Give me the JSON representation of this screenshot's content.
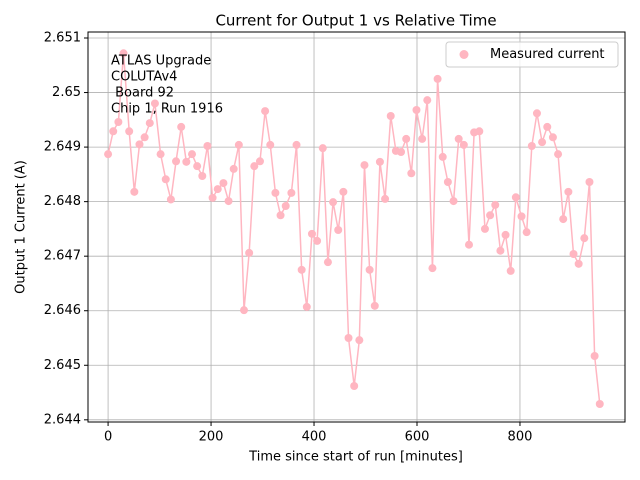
{
  "chart_data": {
    "type": "line",
    "title": "Current for Output 1 vs Relative Time",
    "x_label": "Time since start of run [minutes]",
    "y_label": "Output 1 Current (A)",
    "annotation": [
      "ATLAS Upgrade",
      "COLUTAv4",
      " Board 92",
      "Chip 1, Run 1916"
    ],
    "legend": "upper right",
    "grid": true,
    "xlim": [
      -39,
      1004
    ],
    "ylim": [
      2.64396,
      2.65111
    ],
    "xticks": [
      0,
      200,
      400,
      600,
      800
    ],
    "yticks": [
      2.644,
      2.645,
      2.646,
      2.647,
      2.648,
      2.649,
      2.65,
      2.651
    ],
    "series": [
      {
        "name": "Measured current",
        "color": "#ffb6c1",
        "x": [
          0,
          10,
          20,
          30,
          41,
          51,
          61,
          71,
          81,
          91,
          102,
          112,
          122,
          132,
          142,
          152,
          163,
          173,
          183,
          193,
          203,
          213,
          224,
          234,
          244,
          254,
          264,
          274,
          284,
          295,
          305,
          315,
          325,
          335,
          345,
          356,
          366,
          376,
          386,
          396,
          406,
          417,
          427,
          437,
          447,
          457,
          467,
          478,
          488,
          498,
          508,
          518,
          528,
          538,
          549,
          559,
          569,
          579,
          589,
          599,
          610,
          620,
          630,
          640,
          650,
          660,
          671,
          681,
          691,
          701,
          711,
          721,
          732,
          742,
          752,
          762,
          772,
          782,
          792,
          803,
          813,
          823,
          833,
          843,
          853,
          864,
          874,
          884,
          894,
          904,
          914,
          925,
          935,
          945,
          955
        ],
        "values": [
          2.64887,
          2.64929,
          2.64946,
          2.65072,
          2.64929,
          2.64818,
          2.64905,
          2.64918,
          2.64944,
          2.6498,
          2.64887,
          2.64841,
          2.64804,
          2.64874,
          2.64937,
          2.64873,
          2.64887,
          2.64865,
          2.64847,
          2.64902,
          2.64807,
          2.64823,
          2.64834,
          2.64801,
          2.6486,
          2.64904,
          2.64601,
          2.64706,
          2.64865,
          2.64874,
          2.64966,
          2.64904,
          2.64816,
          2.64775,
          2.64792,
          2.64816,
          2.64904,
          2.64675,
          2.64607,
          2.64741,
          2.64728,
          2.64898,
          2.64689,
          2.64799,
          2.64748,
          2.64818,
          2.6455,
          2.64462,
          2.64546,
          2.64867,
          2.64675,
          2.64609,
          2.64873,
          2.64805,
          2.64957,
          2.64893,
          2.64891,
          2.64915,
          2.64852,
          2.64968,
          2.64915,
          2.64986,
          2.64678,
          2.65025,
          2.64882,
          2.64836,
          2.64801,
          2.64915,
          2.64904,
          2.64721,
          2.64927,
          2.64929,
          2.6475,
          2.64775,
          2.64794,
          2.6471,
          2.64739,
          2.64673,
          2.64808,
          2.64773,
          2.64744,
          2.64902,
          2.64962,
          2.64909,
          2.64937,
          2.64918,
          2.64887,
          2.64768,
          2.64818,
          2.64704,
          2.64686,
          2.64733,
          2.64836,
          2.64517,
          2.64429
        ]
      }
    ]
  }
}
